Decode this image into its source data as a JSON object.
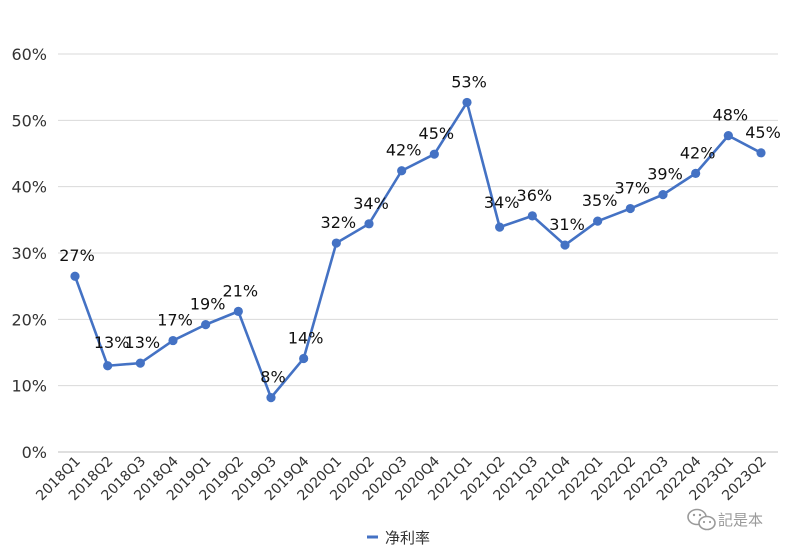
{
  "chart_data": {
    "type": "line",
    "title": "",
    "xlabel": "",
    "ylabel": "",
    "ylim": [
      0,
      60
    ],
    "y_ticks": [
      "0%",
      "10%",
      "20%",
      "30%",
      "40%",
      "50%",
      "60%"
    ],
    "grid": true,
    "legend_position": "bottom-center",
    "categories": [
      "2018Q1",
      "2018Q2",
      "2018Q3",
      "2018Q4",
      "2019Q1",
      "2019Q2",
      "2019Q3",
      "2019Q4",
      "2020Q1",
      "2020Q2",
      "2020Q3",
      "2020Q4",
      "2021Q1",
      "2021Q2",
      "2021Q3",
      "2021Q4",
      "2022Q1",
      "2022Q2",
      "2022Q3",
      "2022Q4",
      "2023Q1",
      "2023Q2"
    ],
    "series": [
      {
        "name": "净利率",
        "color": "#4472c4",
        "values": [
          26.5,
          13.0,
          13.4,
          16.8,
          19.2,
          21.2,
          8.2,
          14.1,
          31.5,
          34.4,
          42.4,
          44.9,
          52.7,
          33.9,
          35.6,
          31.2,
          34.8,
          36.7,
          38.8,
          42.0,
          47.7,
          45.1
        ],
        "labels": [
          "27%",
          "13%",
          "13%",
          "17%",
          "19%",
          "21%",
          "8%",
          "14%",
          "32%",
          "34%",
          "42%",
          "45%",
          "53%",
          "34%",
          "36%",
          "31%",
          "35%",
          "37%",
          "39%",
          "42%",
          "48%",
          "45%"
        ]
      }
    ]
  },
  "watermark": {
    "icon": "wechat-icon",
    "text": "記是本"
  }
}
